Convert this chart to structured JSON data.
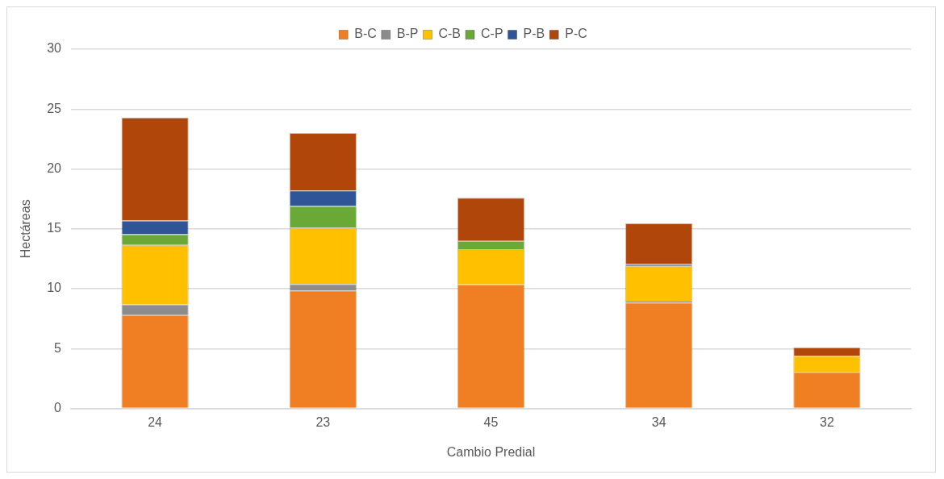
{
  "chart_data": {
    "type": "bar",
    "stacked": true,
    "xlabel": "Cambio Predial",
    "ylabel": "Hectáreas",
    "categories": [
      "24",
      "23",
      "45",
      "34",
      "32"
    ],
    "series": [
      {
        "name": "B-C",
        "color": "#f07f24",
        "values": [
          7.8,
          9.85,
          10.35,
          8.85,
          3.05
        ]
      },
      {
        "name": "B-P",
        "color": "#8c8c8c",
        "values": [
          0.9,
          0.55,
          0,
          0.15,
          0
        ]
      },
      {
        "name": "C-B",
        "color": "#ffc000",
        "values": [
          4.95,
          4.7,
          2.95,
          2.9,
          1.35
        ]
      },
      {
        "name": "C-P",
        "color": "#6aa936",
        "values": [
          0.9,
          1.8,
          0.7,
          0,
          0
        ]
      },
      {
        "name": "P-B",
        "color": "#2f5597",
        "values": [
          1.15,
          1.3,
          0,
          0.15,
          0
        ]
      },
      {
        "name": "P-C",
        "color": "#b0460a",
        "values": [
          8.6,
          4.8,
          3.6,
          3.4,
          0.7
        ]
      }
    ],
    "ylim": [
      0,
      30
    ],
    "yticks": [
      0,
      5,
      10,
      15,
      20,
      25,
      30
    ],
    "grid": "y",
    "legend": "top"
  }
}
